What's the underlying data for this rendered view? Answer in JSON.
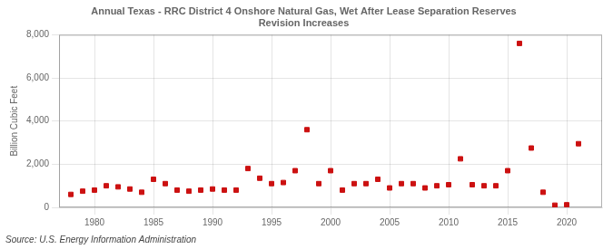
{
  "chart_data": {
    "type": "scatter",
    "title": "Annual Texas - RRC District 4 Onshore Natural Gas, Wet After Lease Separation Reserves\nRevision Increases",
    "ylabel": "Billion Cubic Feet",
    "source": "Source: U.S. Energy Information Administration",
    "x": [
      1978,
      1979,
      1980,
      1981,
      1982,
      1983,
      1984,
      1985,
      1986,
      1987,
      1988,
      1989,
      1990,
      1991,
      1992,
      1993,
      1994,
      1995,
      1996,
      1997,
      1998,
      1999,
      2000,
      2001,
      2002,
      2003,
      2004,
      2005,
      2006,
      2007,
      2008,
      2009,
      2010,
      2011,
      2012,
      2013,
      2014,
      2015,
      2016,
      2017,
      2018,
      2019,
      2020,
      2021
    ],
    "values": [
      600,
      750,
      800,
      1000,
      950,
      850,
      700,
      1300,
      1100,
      800,
      750,
      800,
      850,
      800,
      800,
      1800,
      1350,
      1100,
      1150,
      1700,
      3600,
      1100,
      1700,
      800,
      1100,
      1100,
      1300,
      900,
      1100,
      1100,
      900,
      1000,
      1050,
      2250,
      1050,
      1000,
      1000,
      1700,
      7600,
      2750,
      700,
      100,
      120,
      2950
    ],
    "color": "#cc1111",
    "marker": "square",
    "xlim": [
      1977,
      2023
    ],
    "xticks": [
      1980,
      1985,
      1990,
      1995,
      2000,
      2005,
      2010,
      2015,
      2020
    ],
    "ylim": [
      0,
      8000
    ],
    "yticks": [
      0,
      {
        "value": 2000,
        "label": "2,000"
      },
      {
        "value": 4000,
        "label": "4,000"
      },
      {
        "value": 6000,
        "label": "6,000"
      },
      {
        "value": 8000,
        "label": "8,000"
      }
    ],
    "grid": true
  }
}
